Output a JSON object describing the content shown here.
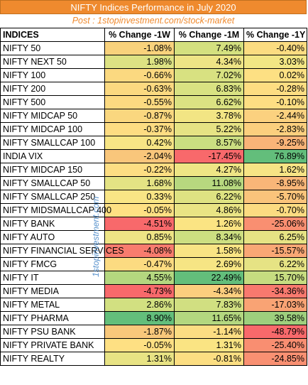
{
  "title": "NIFTY Indices Performance in July 2020",
  "post": "Post : 1stopinvestment.com/stock-market",
  "watermark": "1stopinvestment.com",
  "headers": [
    "INDICES",
    "% Change -1W",
    "% Change -1M",
    "% Change -1Y"
  ],
  "rows": [
    {
      "name": "NIFTY 50",
      "w": "-1.08%",
      "m": "7.49%",
      "y": "-0.40%",
      "cw": "#f9d27c",
      "cm": "#d4e07f",
      "cy": "#fbdc81"
    },
    {
      "name": "NIFTY NEXT 50",
      "w": "1.98%",
      "m": "4.34%",
      "y": "3.03%",
      "cw": "#dde283",
      "cm": "#eee485",
      "cy": "#f2e684"
    },
    {
      "name": "NIFTY 100",
      "w": "-0.66%",
      "m": "7.02%",
      "y": "0.02%",
      "cw": "#fbd980",
      "cm": "#d8e181",
      "cy": "#fde083"
    },
    {
      "name": "NIFTY 200",
      "w": "-0.63%",
      "m": "6.83%",
      "y": "-0.28%",
      "cw": "#fbd980",
      "cm": "#d9e282",
      "cy": "#fddd82"
    },
    {
      "name": "NIFTY 500",
      "w": "-0.55%",
      "m": "6.62%",
      "y": "-0.10%",
      "cw": "#fcda81",
      "cm": "#dbe282",
      "cy": "#fdde83"
    },
    {
      "name": "NIFTY MIDCAP 50",
      "w": "-0.87%",
      "m": "3.78%",
      "y": "-2.44%",
      "cw": "#fad77f",
      "cm": "#f2e584",
      "cy": "#fbd17f"
    },
    {
      "name": "NIFTY MIDCAP 100",
      "w": "-0.37%",
      "m": "5.22%",
      "y": "-2.83%",
      "cw": "#fddc82",
      "cm": "#e6e384",
      "cy": "#fbcf7e"
    },
    {
      "name": "NIFTY SMALLCAP 100",
      "w": "0.42%",
      "m": "8.57%",
      "y": "-9.25%",
      "cw": "#f7e585",
      "cm": "#cbde81",
      "cy": "#f9b478"
    },
    {
      "name": "INDIA VIX",
      "w": "-2.04%",
      "m": "-17.45%",
      "y": "76.89%",
      "cw": "#f9c67b",
      "cm": "#f8696b",
      "cy": "#63be7b"
    },
    {
      "name": "NIFTY MIDCAP 150",
      "w": "-0.22%",
      "m": "4.27%",
      "y": "1.62%",
      "cw": "#fdde83",
      "cm": "#eee585",
      "cy": "#f7e485"
    },
    {
      "name": "NIFTY SMALLCAP 50",
      "w": "1.68%",
      "m": "11.08%",
      "y": "-8.95%",
      "cw": "#e4e384",
      "cm": "#b7d87f",
      "cy": "#f9b678"
    },
    {
      "name": "NIFTY SMALLCAP 250",
      "w": "0.33%",
      "m": "6.22%",
      "y": "-5.70%",
      "cw": "#f9e585",
      "cm": "#dee282",
      "cy": "#fac47b"
    },
    {
      "name": "NIFTY MIDSMALLCAP 400",
      "w": "-0.05%",
      "m": "4.86%",
      "y": "-0.70%",
      "cw": "#fee083",
      "cm": "#e9e484",
      "cy": "#fcdb81"
    },
    {
      "name": "NIFTY BANK",
      "w": "-4.51%",
      "m": "1.26%",
      "y": "-25.06%",
      "cw": "#f8696b",
      "cm": "#fbe483",
      "cy": "#f98f71"
    },
    {
      "name": "NIFTY AUTO",
      "w": "0.85%",
      "m": "8.34%",
      "y": "6.25%",
      "cw": "#eee485",
      "cm": "#cddf81",
      "cy": "#e6e384"
    },
    {
      "name": "NIFTY FINANCIAL SERVICES",
      "w": "-4.08%",
      "m": "1.58%",
      "y": "-15.57%",
      "cw": "#f87c6e",
      "cm": "#f9e484",
      "cy": "#f9a775"
    },
    {
      "name": "NIFTY FMCG",
      "w": "-0.47%",
      "m": "2.69%",
      "y": "6.22%",
      "cw": "#fcdb81",
      "cm": "#f6e584",
      "cy": "#e6e384"
    },
    {
      "name": "NIFTY IT",
      "w": "4.55%",
      "m": "22.49%",
      "y": "15.70%",
      "cw": "#b4d77f",
      "cm": "#63be7b",
      "cy": "#c6dc80"
    },
    {
      "name": "NIFTY MEDIA",
      "w": "-4.73%",
      "m": "-4.34%",
      "y": "-34.36%",
      "cw": "#f8696b",
      "cm": "#fbce7e",
      "cy": "#f8796e"
    },
    {
      "name": "NIFTY METAL",
      "w": "2.86%",
      "m": "7.83%",
      "y": "-17.03%",
      "cw": "#d2e081",
      "cm": "#d1df81",
      "cy": "#f9a374"
    },
    {
      "name": "NIFTY PHARMA",
      "w": "8.90%",
      "m": "11.65%",
      "y": "39.58%",
      "cw": "#63be7b",
      "cm": "#b3d77f",
      "cy": "#9ecf7d"
    },
    {
      "name": "NIFTY PSU BANK",
      "w": "-1.87%",
      "m": "-1.14%",
      "y": "-48.79%",
      "cw": "#f9c87b",
      "cm": "#fcdd82",
      "cy": "#f8696b"
    },
    {
      "name": "NIFTY PRIVATE BANK",
      "w": "-0.05%",
      "m": "1.31%",
      "y": "-25.40%",
      "cw": "#fee083",
      "cm": "#fae483",
      "cy": "#f98e71"
    },
    {
      "name": "NIFTY REALTY",
      "w": "1.31%",
      "m": "-0.81%",
      "y": "-24.85%",
      "cw": "#e8e384",
      "cm": "#fcde82",
      "cy": "#f99072"
    }
  ]
}
